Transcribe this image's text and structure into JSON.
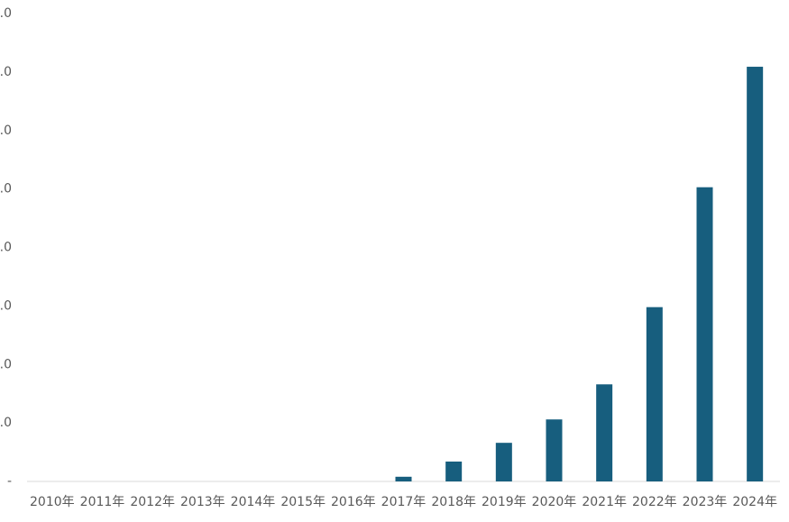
{
  "chart_data": {
    "type": "bar",
    "categories": [
      "2010年",
      "2011年",
      "2012年",
      "2013年",
      "2014年",
      "2015年",
      "2016年",
      "2017年",
      "2018年",
      "2019年",
      "2020年",
      "2021年",
      "2022年",
      "2023年",
      "2024年"
    ],
    "values": [
      0,
      0,
      0,
      0,
      0,
      0,
      0,
      0.8,
      3.4,
      6.6,
      10.6,
      16.6,
      29.8,
      50.3,
      70.9
    ],
    "color": "#175e7e",
    "ylim": [
      0,
      80
    ],
    "yticks": [
      {
        "value": 0,
        "label": "-"
      },
      {
        "value": 10,
        "label": ".0"
      },
      {
        "value": 20,
        "label": ".0"
      },
      {
        "value": 30,
        "label": ".0"
      },
      {
        "value": 40,
        "label": ".0"
      },
      {
        "value": 50,
        "label": ".0"
      },
      {
        "value": 60,
        "label": ".0"
      },
      {
        "value": 70,
        "label": ".0"
      },
      {
        "value": 80,
        "label": ".0"
      }
    ],
    "grid": false
  }
}
